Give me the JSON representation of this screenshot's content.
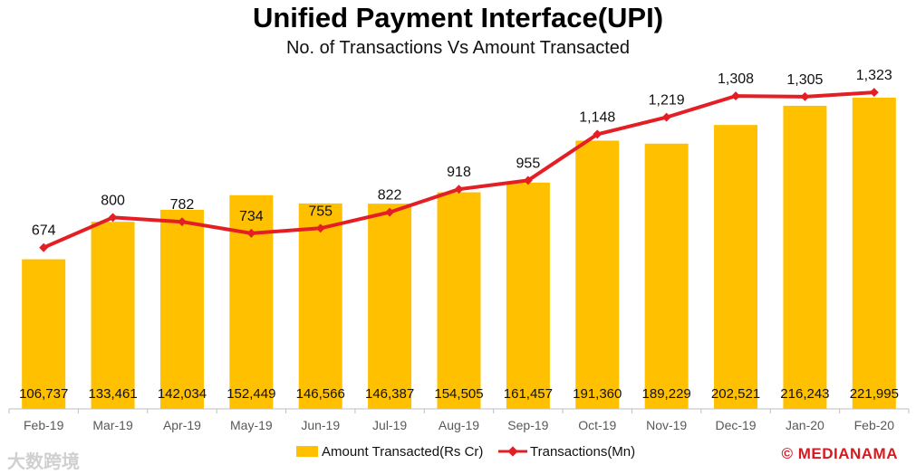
{
  "chart_data": {
    "type": "bar+line",
    "title": "Unified Payment Interface(UPI)",
    "subtitle": "No. of Transactions Vs Amount Transacted",
    "categories": [
      "Feb-19",
      "Mar-19",
      "Apr-19",
      "May-19",
      "Jun-19",
      "Jul-19",
      "Aug-19",
      "Sep-19",
      "Oct-19",
      "Nov-19",
      "Dec-19",
      "Jan-20",
      "Feb-20"
    ],
    "series": [
      {
        "name": "Amount Transacted(Rs Cr)",
        "type": "bar",
        "color": "#FFC000",
        "values": [
          106737,
          133461,
          142034,
          152449,
          146566,
          146387,
          154505,
          161457,
          191360,
          189229,
          202521,
          216243,
          221995
        ],
        "labels": [
          "106,737",
          "133,461",
          "142,034",
          "152,449",
          "146,566",
          "146,387",
          "154,505",
          "161,457",
          "191,360",
          "189,229",
          "202,521",
          "216,243",
          "221,995"
        ]
      },
      {
        "name": "Transactions(Mn)",
        "type": "line",
        "color": "#E31E24",
        "values": [
          674,
          800,
          782,
          734,
          755,
          822,
          918,
          955,
          1148,
          1219,
          1308,
          1305,
          1323
        ],
        "labels": [
          "674",
          "800",
          "782",
          "734",
          "755",
          "822",
          "918",
          "955",
          "1,148",
          "1,219",
          "1,308",
          "1,305",
          "1,323"
        ]
      }
    ],
    "bar_axis_range": [
      0,
      232000
    ],
    "line_axis_range": [
      0,
      1520
    ],
    "grid": false,
    "legend": "bottom"
  },
  "watermark": "大数跨境",
  "brand": "© MEDIANAMA"
}
